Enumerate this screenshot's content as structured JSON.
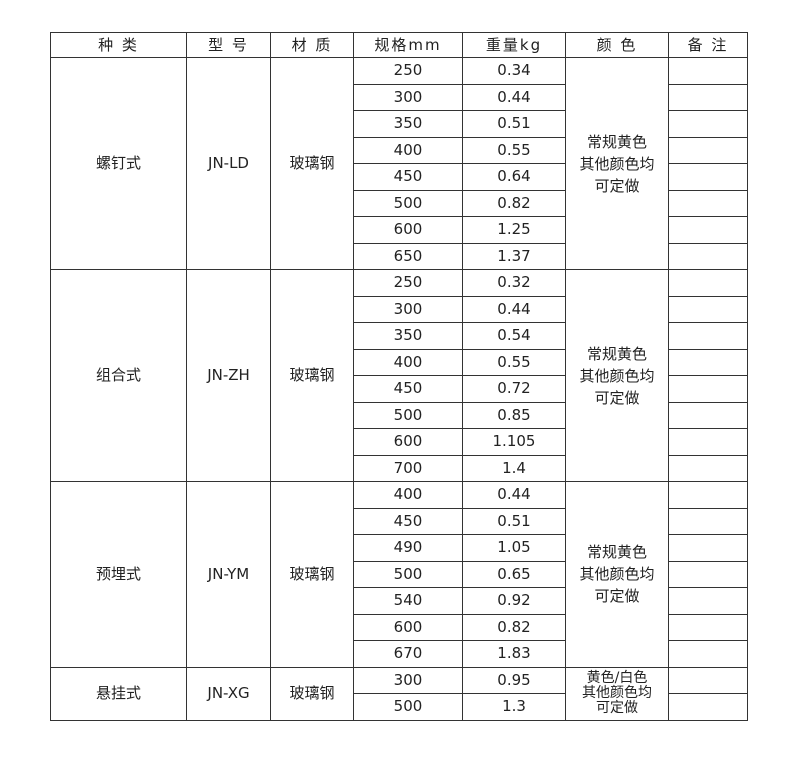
{
  "headers": [
    "种 类",
    "型 号",
    "材 质",
    "规格mm",
    "重量kg",
    "颜 色",
    "备 注"
  ],
  "groups": [
    {
      "type": "螺钉式",
      "model": "JN-LD",
      "material": "玻璃钢",
      "color": [
        "常规黄色",
        "其他颜色均",
        "可定做"
      ],
      "rows": [
        [
          "250",
          "0.34"
        ],
        [
          "300",
          "0.44"
        ],
        [
          "350",
          "0.51"
        ],
        [
          "400",
          "0.55"
        ],
        [
          "450",
          "0.64"
        ],
        [
          "500",
          "0.82"
        ],
        [
          "600",
          "1.25"
        ],
        [
          "650",
          "1.37"
        ]
      ]
    },
    {
      "type": "组合式",
      "model": "JN-ZH",
      "material": "玻璃钢",
      "color": [
        "常规黄色",
        "其他颜色均",
        "可定做"
      ],
      "rows": [
        [
          "250",
          "0.32"
        ],
        [
          "300",
          "0.44"
        ],
        [
          "350",
          "0.54"
        ],
        [
          "400",
          "0.55"
        ],
        [
          "450",
          "0.72"
        ],
        [
          "500",
          "0.85"
        ],
        [
          "600",
          "1.105"
        ],
        [
          "700",
          "1.4"
        ]
      ]
    },
    {
      "type": "预埋式",
      "model": "JN-YM",
      "material": "玻璃钢",
      "color": [
        "常规黄色",
        "其他颜色均",
        "可定做"
      ],
      "rows": [
        [
          "400",
          "0.44"
        ],
        [
          "450",
          "0.51"
        ],
        [
          "490",
          "1.05"
        ],
        [
          "500",
          "0.65"
        ],
        [
          "540",
          "0.92"
        ],
        [
          "600",
          "0.82"
        ],
        [
          "670",
          "1.83"
        ]
      ]
    },
    {
      "type": "悬挂式",
      "model": "JN-XG",
      "material": "玻璃钢",
      "color": [
        "黄色/白色",
        "其他颜色均",
        "可定做"
      ],
      "rows": [
        [
          "300",
          "0.95"
        ],
        [
          "500",
          "1.3"
        ]
      ]
    }
  ]
}
